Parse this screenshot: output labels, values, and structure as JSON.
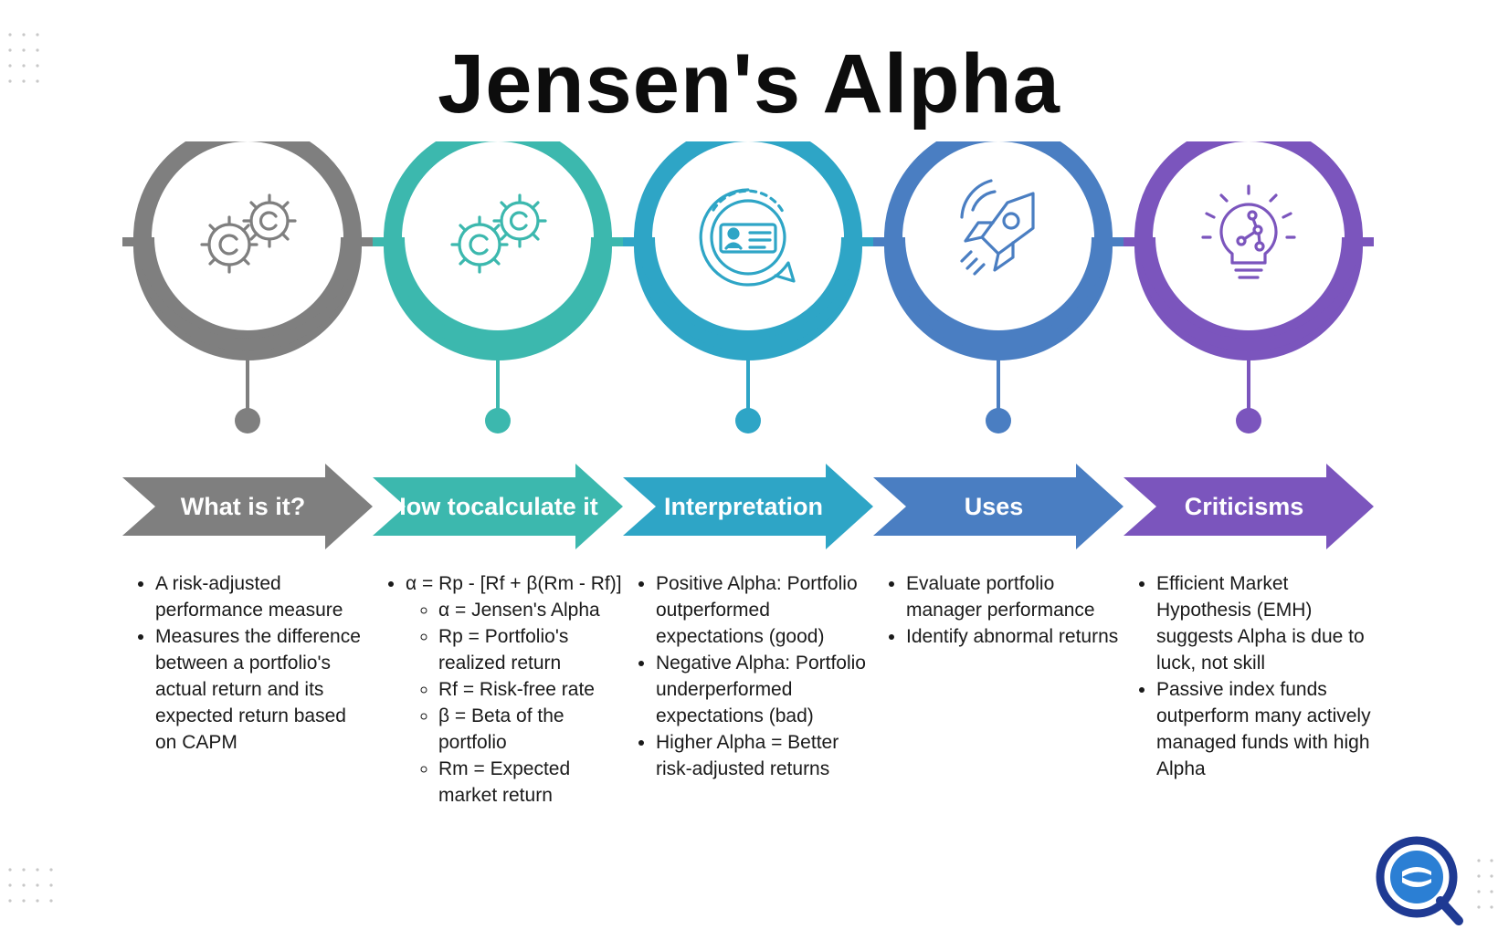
{
  "title": "Jensen's Alpha",
  "stages": [
    {
      "label": "What is it?",
      "label_lines": [
        "What is it?"
      ],
      "color": "#7f7f7f",
      "icon": "gears-icon",
      "bullets": [
        {
          "text": "A risk-adjusted performance measure"
        },
        {
          "text": "Measures the difference between a portfolio's actual return and its expected return based on CAPM"
        }
      ]
    },
    {
      "label": "How to calculate it",
      "label_lines": [
        "How to",
        "calculate it"
      ],
      "color": "#3cb8ae",
      "icon": "gears-icon",
      "bullets": [
        {
          "text": "α = Rp - [Rf + β(Rm - Rf)]",
          "sub": [
            "α = Jensen's Alpha",
            "Rp = Portfolio's realized return",
            "Rf = Risk-free rate",
            "β = Beta of the portfolio",
            "Rm = Expected market return"
          ]
        }
      ]
    },
    {
      "label": "Interpretation",
      "label_lines": [
        "Interpretation"
      ],
      "color": "#2ea5c6",
      "icon": "id-card-chat-icon",
      "bullets": [
        {
          "text": "Positive Alpha: Portfolio outperformed expectations (good)"
        },
        {
          "text": "Negative Alpha: Portfolio underperformed expectations (bad)"
        },
        {
          "text": "Higher Alpha = Better risk-adjusted returns"
        }
      ]
    },
    {
      "label": "Uses",
      "label_lines": [
        "Uses"
      ],
      "color": "#4a7ec2",
      "icon": "rocket-icon",
      "bullets": [
        {
          "text": "Evaluate portfolio manager performance"
        },
        {
          "text": "Identify abnormal returns"
        }
      ]
    },
    {
      "label": "Criticisms",
      "label_lines": [
        "Criticisms"
      ],
      "color": "#7b55bd",
      "icon": "lightbulb-icon",
      "bullets": [
        {
          "text": "Efficient Market Hypothesis (EMH) suggests Alpha is due to luck, not skill"
        },
        {
          "text": "Passive index funds outperform many actively managed funds with high Alpha"
        }
      ]
    }
  ],
  "logo": {
    "icon": "sq-logo-icon",
    "color_outer": "#1f3a93",
    "color_inner": "#2b7fd4"
  }
}
